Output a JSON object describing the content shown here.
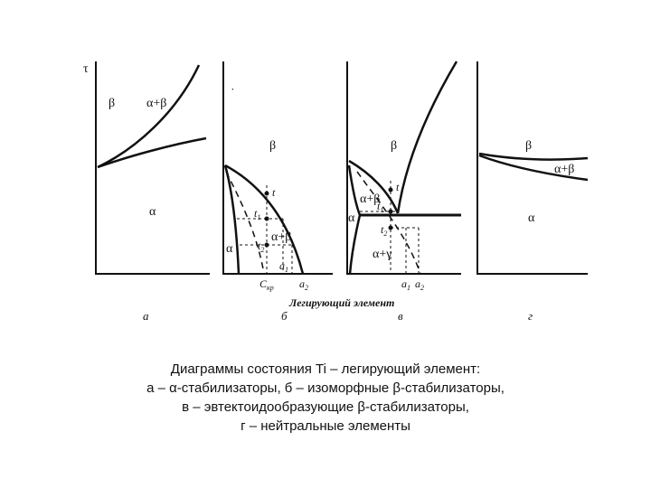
{
  "axis": {
    "y_symbol": "τ",
    "x_caption": "Легирующий элемент"
  },
  "panel_a": {
    "letter": "а",
    "beta": "β",
    "alpha_beta": "α+β",
    "alpha": "α"
  },
  "panel_b": {
    "letter": "б",
    "beta": "β",
    "alpha": "α",
    "alpha_beta": "α+β",
    "t": "t",
    "t1": "t",
    "t1_sub": "1",
    "t2": "t",
    "t2_sub": "2",
    "a1": "a",
    "a1_sub": "1",
    "ckr": "C",
    "ckr_sub": "кр",
    "a2": "a",
    "a2_sub": "2"
  },
  "panel_v": {
    "letter": "в",
    "beta": "β",
    "alpha_beta": "α+β",
    "alpha": "α",
    "alpha_gamma": "α+γ",
    "t": "t",
    "t1": "t",
    "t1_sub": "1",
    "t2": "t",
    "t2_sub": "2",
    "a1": "a",
    "a1_sub": "1",
    "a2": "a",
    "a2_sub": "2"
  },
  "panel_g": {
    "letter": "г",
    "beta": "β",
    "alpha_beta": "α+β",
    "alpha": "α"
  },
  "caption": {
    "line1": "Диаграммы состояния Ti – легирующий элемент:",
    "line2": "а – α-стабилизаторы, б – изоморфные β-стабилизаторы,",
    "line3": "в – эвтектоидообразующие β-стабилизаторы,",
    "line4": "г – нейтральные элементы"
  }
}
